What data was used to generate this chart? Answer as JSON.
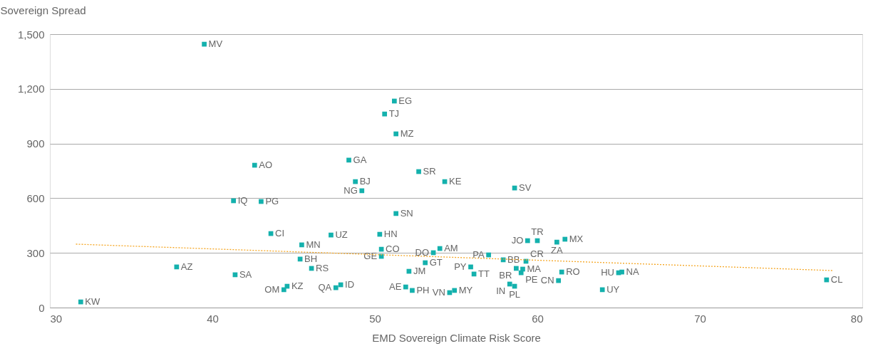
{
  "chart_data": {
    "type": "scatter",
    "ylabel": "Sovereign Spread",
    "xlabel": "EMD Sovereign Climate Risk Score",
    "xlim": [
      30,
      80
    ],
    "xticks": [
      30,
      40,
      50,
      60,
      70,
      80
    ],
    "ylim": [
      0,
      1500
    ],
    "yticks": [
      0,
      300,
      600,
      900,
      {
        "value": 1200,
        "label": "1,200"
      },
      {
        "value": 1500,
        "label": "1,500"
      }
    ],
    "grid": "y",
    "series": [
      {
        "color": "#14b1ad",
        "marker": "square",
        "x": [
          39.5,
          42.6,
          41.3,
          43.0,
          43.6,
          47.3,
          45.5,
          45.4,
          46.1,
          37.8,
          41.4,
          31.9,
          44.4,
          44.6,
          47.6,
          47.9,
          48.4,
          48.8,
          49.2,
          51.2,
          50.6,
          51.3,
          51.3,
          52.7,
          54.3,
          58.6,
          50.3,
          50.4,
          50.4,
          53.1,
          53.6,
          54.0,
          52.1,
          51.9,
          52.3,
          54.9,
          54.6,
          57.0,
          55.9,
          56.1,
          57.9,
          58.7,
          59.1,
          59.0,
          59.3,
          58.3,
          58.6,
          59.4,
          60.0,
          61.2,
          61.7,
          61.5,
          61.3,
          64.0,
          65.0,
          65.2,
          77.8
        ],
        "values": [
          1445,
          781,
          586,
          582,
          406,
          398,
          344,
          266,
          215,
          223,
          180,
          31,
          98,
          117,
          109,
          125,
          809,
          691,
          641,
          1133,
          1062,
          953,
          516,
          746,
          691,
          656,
          402,
          320,
          281,
          246,
          301,
          324,
          199,
          113,
          94,
          94,
          82,
          289,
          223,
          184,
          262,
          215,
          211,
          191,
          254,
          129,
          117,
          367,
          367,
          359,
          375,
          195,
          148,
          98,
          191,
          195,
          152
        ],
        "value_labels": [
          "MV",
          "AO",
          "IQ",
          "PG",
          "CI",
          "UZ",
          "MN",
          "BH",
          "RS",
          "AZ",
          "SA",
          "KW",
          "OM",
          "KZ",
          "QA",
          "ID",
          "GA",
          "BJ",
          "NG",
          "EG",
          "TJ",
          "MZ",
          "SN",
          "SR",
          "KE",
          "SV",
          "HN",
          "CO",
          "GE",
          "GT",
          "DO",
          "AM",
          "JM",
          "AE",
          "PH",
          "MY",
          "VN",
          "PA",
          "PY",
          "TT",
          "BB",
          "BR",
          "MA",
          "PE",
          "CR",
          "IN",
          "PL",
          "JO",
          "TR",
          "ZA",
          "MX",
          "RO",
          "CN",
          "UY",
          "HU",
          "NA",
          "CL"
        ]
      },
      {
        "type": "line",
        "color": "#f5a623",
        "line_style": "dotted",
        "x": [
          31.6,
          78.2
        ],
        "values": [
          348,
          203
        ]
      }
    ]
  }
}
